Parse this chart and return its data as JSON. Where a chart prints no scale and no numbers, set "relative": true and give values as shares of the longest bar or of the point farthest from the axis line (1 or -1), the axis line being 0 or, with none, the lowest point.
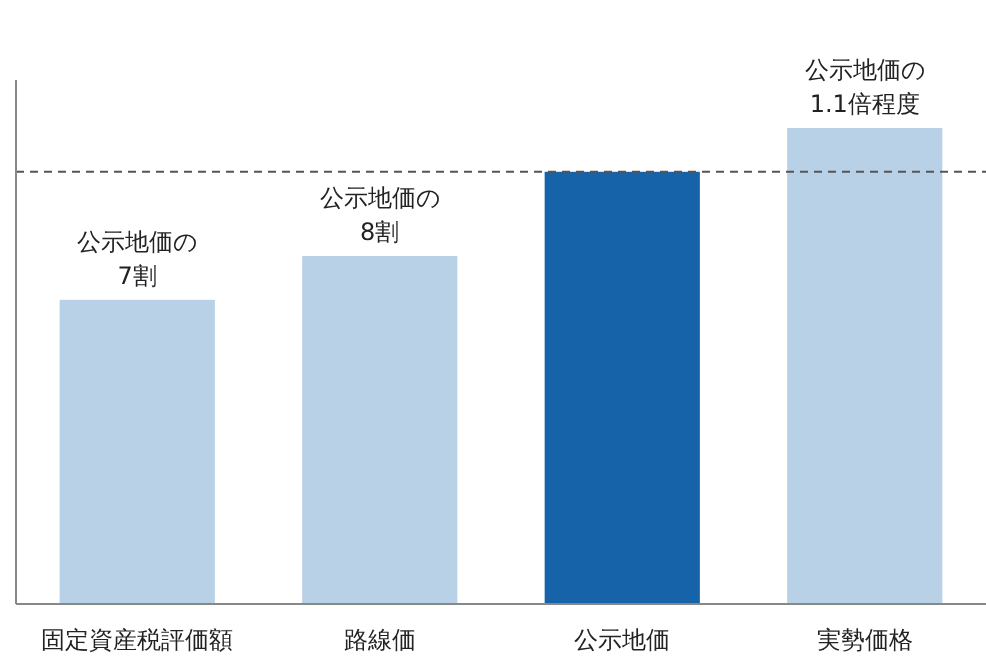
{
  "chart_data": {
    "type": "bar",
    "relative": true,
    "categories": [
      "固定資産税評価額",
      "路線価",
      "公示地価",
      "実勢価格"
    ],
    "values": [
      0.639,
      0.731,
      0.908,
      1
    ],
    "colors": [
      "#b9d1e6",
      "#b9d1e6",
      "#1763a9",
      "#b9d1e6"
    ],
    "ref_lines": [
      {
        "axis": "y",
        "value": 0.908,
        "color": "#555555",
        "line_style": "dashed"
      }
    ],
    "annotations": [
      {
        "text": "公示地価の\n7割",
        "x": "固定資産税評価額",
        "y": 0.639
      },
      {
        "text": "公示地価の\n8割",
        "x": "路線価",
        "y": 0.731
      },
      {
        "text": "公示地価の\n1.1倍程度",
        "x": "実勢価格",
        "y": 1
      }
    ],
    "stacked": false
  }
}
